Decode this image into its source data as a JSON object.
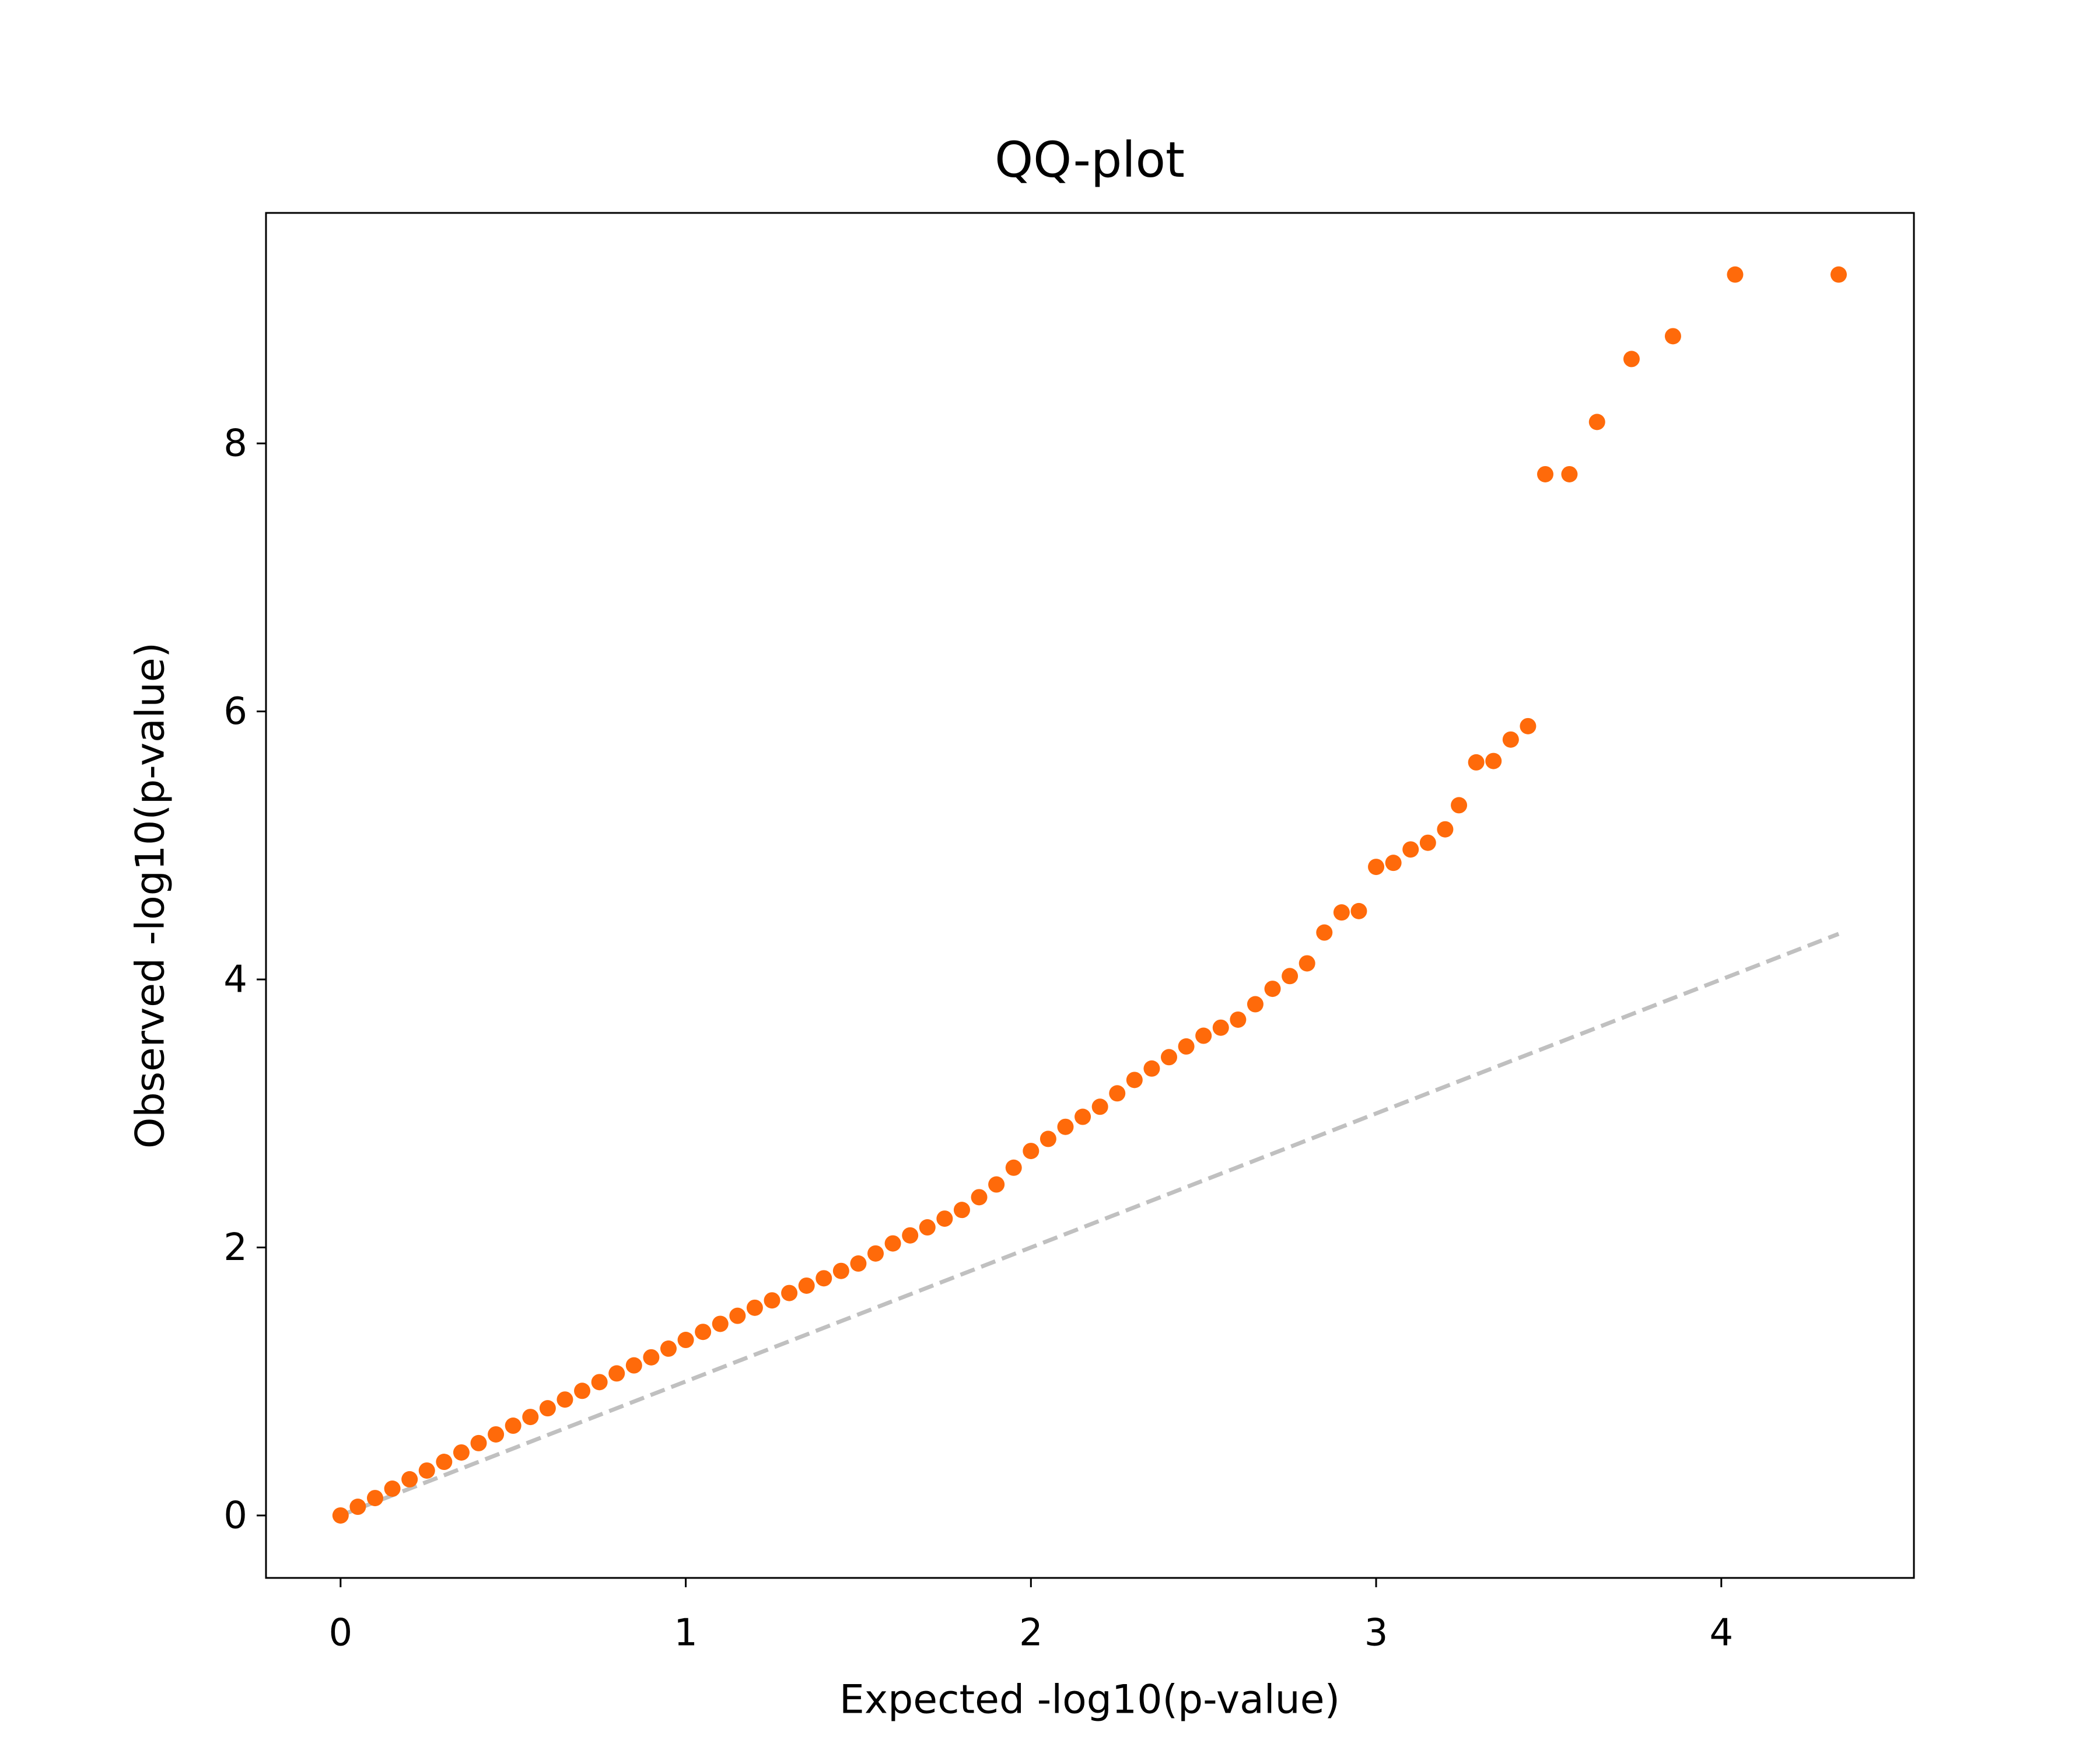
{
  "chart_data": {
    "type": "scatter",
    "title": "QQ-plot",
    "x_label": "Expected -log10(p-value)",
    "y_label": "Observed -log10(p-value)",
    "color": "#ff6a0a",
    "x": [
      0,
      0.05,
      0.1,
      0.15,
      0.2,
      0.25,
      0.3,
      0.35,
      0.4,
      0.45,
      0.5,
      0.55,
      0.6,
      0.65,
      0.7,
      0.75,
      0.8,
      0.85,
      0.9,
      0.95,
      1.0,
      1.05,
      1.1,
      1.15,
      1.2,
      1.25,
      1.3,
      1.35,
      1.4,
      1.45,
      1.5,
      1.55,
      1.6,
      1.65,
      1.7,
      1.75,
      1.8,
      1.85,
      1.9,
      1.95,
      2.0,
      2.05,
      2.1,
      2.15,
      2.2,
      2.25,
      2.3,
      2.35,
      2.4,
      2.45,
      2.5,
      2.55,
      2.6,
      2.65,
      2.7,
      2.75,
      2.8,
      2.85,
      2.9,
      2.95,
      3.0,
      3.05,
      3.1,
      3.15,
      3.2,
      3.24,
      3.29,
      3.34,
      3.39,
      3.44,
      3.49,
      3.56,
      3.64,
      3.74,
      3.86,
      4.04,
      4.34
    ],
    "values": [
      0,
      0.065,
      0.13,
      0.2,
      0.27,
      0.335,
      0.4,
      0.47,
      0.54,
      0.605,
      0.67,
      0.735,
      0.8,
      0.865,
      0.93,
      0.995,
      1.06,
      1.12,
      1.18,
      1.245,
      1.31,
      1.37,
      1.43,
      1.49,
      1.55,
      1.605,
      1.66,
      1.715,
      1.77,
      1.825,
      1.88,
      1.955,
      2.03,
      2.09,
      2.15,
      2.215,
      2.28,
      2.375,
      2.47,
      2.595,
      2.72,
      2.81,
      2.9,
      2.975,
      3.05,
      3.15,
      3.25,
      3.335,
      3.42,
      3.5,
      3.58,
      3.64,
      3.7,
      3.815,
      3.93,
      4.025,
      4.12,
      4.35,
      4.5,
      4.51,
      4.84,
      4.87,
      4.97,
      5.02,
      5.12,
      5.3,
      5.62,
      5.63,
      5.79,
      5.89,
      7.77,
      7.77,
      8.16,
      8.63,
      8.8,
      9.26,
      9.26
    ],
    "diagonal": {
      "x": [
        0,
        4.34
      ],
      "values": [
        0,
        4.34
      ],
      "color": "#c0c0c0"
    },
    "xlim": [
      -0.216,
      4.558
    ],
    "ylim": [
      -0.466,
      9.72
    ],
    "xticks": [
      0,
      1,
      2,
      3,
      4
    ],
    "yticks": [
      0,
      2,
      4,
      6,
      8
    ]
  }
}
